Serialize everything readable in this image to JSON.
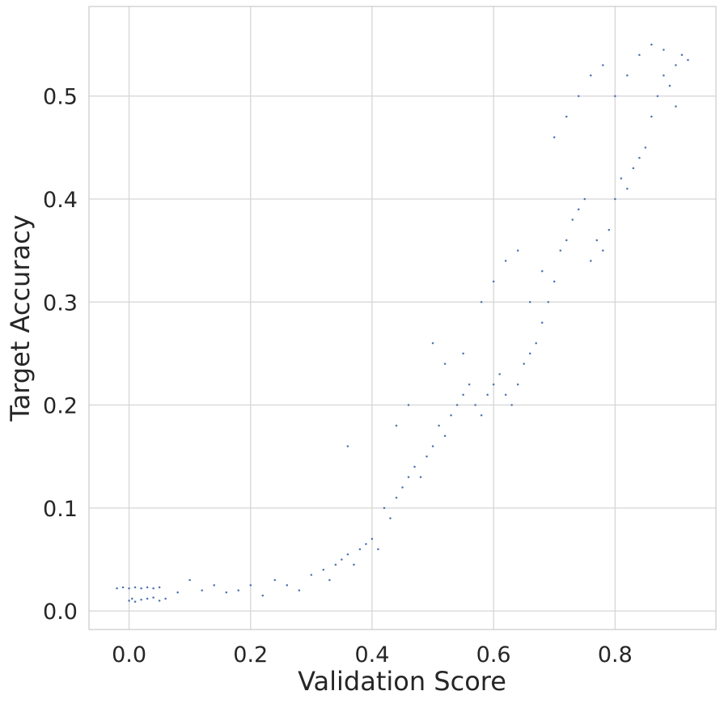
{
  "chart_data": {
    "type": "scatter",
    "title": "",
    "xlabel": "Validation Score",
    "ylabel": "Target Accuracy",
    "xlim": [
      -0.066,
      0.966
    ],
    "ylim": [
      -0.018,
      0.587
    ],
    "xticks": [
      0.0,
      0.2,
      0.4,
      0.6,
      0.8
    ],
    "xtick_labels": [
      "0.0",
      "0.2",
      "0.4",
      "0.6",
      "0.8"
    ],
    "yticks": [
      0.0,
      0.1,
      0.2,
      0.3,
      0.4,
      0.5
    ],
    "ytick_labels": [
      "0.0",
      "0.1",
      "0.2",
      "0.3",
      "0.4",
      "0.5"
    ],
    "grid": true,
    "legend": "none",
    "colors": {
      "marker": "#4c72b0",
      "grid": "#d5d5d5",
      "spine": "#cccccc",
      "text": "#262626"
    },
    "series": [
      {
        "marker_size": 2.5,
        "points": [
          [
            -0.02,
            0.022
          ],
          [
            -0.01,
            0.023
          ],
          [
            0.0,
            0.022
          ],
          [
            0.01,
            0.023
          ],
          [
            0.02,
            0.022
          ],
          [
            0.03,
            0.023
          ],
          [
            0.04,
            0.022
          ],
          [
            0.05,
            0.023
          ],
          [
            0.0,
            0.01
          ],
          [
            0.005,
            0.012
          ],
          [
            0.01,
            0.009
          ],
          [
            0.02,
            0.011
          ],
          [
            0.03,
            0.012
          ],
          [
            0.04,
            0.013
          ],
          [
            0.05,
            0.01
          ],
          [
            0.06,
            0.012
          ],
          [
            0.08,
            0.018
          ],
          [
            0.1,
            0.03
          ],
          [
            0.12,
            0.02
          ],
          [
            0.14,
            0.025
          ],
          [
            0.16,
            0.018
          ],
          [
            0.18,
            0.02
          ],
          [
            0.2,
            0.025
          ],
          [
            0.22,
            0.015
          ],
          [
            0.24,
            0.03
          ],
          [
            0.26,
            0.025
          ],
          [
            0.28,
            0.02
          ],
          [
            0.3,
            0.035
          ],
          [
            0.32,
            0.04
          ],
          [
            0.33,
            0.03
          ],
          [
            0.34,
            0.045
          ],
          [
            0.35,
            0.05
          ],
          [
            0.36,
            0.055
          ],
          [
            0.37,
            0.045
          ],
          [
            0.38,
            0.06
          ],
          [
            0.39,
            0.065
          ],
          [
            0.4,
            0.07
          ],
          [
            0.41,
            0.06
          ],
          [
            0.36,
            0.16
          ],
          [
            0.42,
            0.1
          ],
          [
            0.43,
            0.09
          ],
          [
            0.44,
            0.11
          ],
          [
            0.45,
            0.12
          ],
          [
            0.46,
            0.13
          ],
          [
            0.47,
            0.14
          ],
          [
            0.48,
            0.13
          ],
          [
            0.49,
            0.15
          ],
          [
            0.5,
            0.16
          ],
          [
            0.51,
            0.18
          ],
          [
            0.52,
            0.17
          ],
          [
            0.53,
            0.19
          ],
          [
            0.54,
            0.2
          ],
          [
            0.55,
            0.21
          ],
          [
            0.56,
            0.22
          ],
          [
            0.57,
            0.2
          ],
          [
            0.58,
            0.19
          ],
          [
            0.59,
            0.21
          ],
          [
            0.6,
            0.22
          ],
          [
            0.61,
            0.23
          ],
          [
            0.62,
            0.21
          ],
          [
            0.63,
            0.2
          ],
          [
            0.64,
            0.22
          ],
          [
            0.65,
            0.24
          ],
          [
            0.66,
            0.25
          ],
          [
            0.67,
            0.26
          ],
          [
            0.68,
            0.28
          ],
          [
            0.69,
            0.3
          ],
          [
            0.7,
            0.32
          ],
          [
            0.71,
            0.35
          ],
          [
            0.72,
            0.36
          ],
          [
            0.73,
            0.38
          ],
          [
            0.74,
            0.39
          ],
          [
            0.75,
            0.4
          ],
          [
            0.76,
            0.34
          ],
          [
            0.77,
            0.36
          ],
          [
            0.78,
            0.35
          ],
          [
            0.79,
            0.37
          ],
          [
            0.8,
            0.4
          ],
          [
            0.81,
            0.42
          ],
          [
            0.82,
            0.41
          ],
          [
            0.83,
            0.43
          ],
          [
            0.84,
            0.44
          ],
          [
            0.85,
            0.45
          ],
          [
            0.86,
            0.48
          ],
          [
            0.87,
            0.5
          ],
          [
            0.88,
            0.52
          ],
          [
            0.89,
            0.51
          ],
          [
            0.9,
            0.53
          ],
          [
            0.91,
            0.54
          ],
          [
            0.92,
            0.535
          ],
          [
            0.7,
            0.46
          ],
          [
            0.72,
            0.48
          ],
          [
            0.74,
            0.5
          ],
          [
            0.76,
            0.52
          ],
          [
            0.78,
            0.53
          ],
          [
            0.8,
            0.5
          ],
          [
            0.82,
            0.52
          ],
          [
            0.84,
            0.54
          ],
          [
            0.86,
            0.55
          ],
          [
            0.88,
            0.545
          ],
          [
            0.9,
            0.49
          ],
          [
            0.55,
            0.25
          ],
          [
            0.58,
            0.3
          ],
          [
            0.6,
            0.32
          ],
          [
            0.62,
            0.34
          ],
          [
            0.64,
            0.35
          ],
          [
            0.66,
            0.3
          ],
          [
            0.68,
            0.33
          ],
          [
            0.5,
            0.26
          ],
          [
            0.52,
            0.24
          ],
          [
            0.46,
            0.2
          ],
          [
            0.44,
            0.18
          ]
        ]
      }
    ]
  }
}
